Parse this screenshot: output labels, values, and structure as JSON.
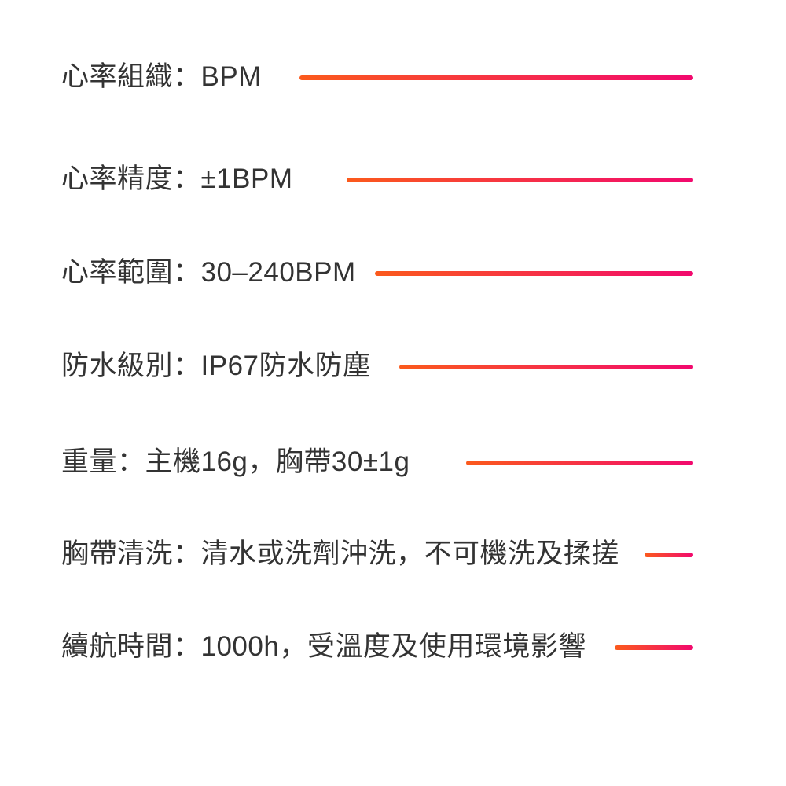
{
  "page": {
    "type": "product-spec-sheet",
    "background": "#ffffff"
  },
  "colors": {
    "text": "#333333",
    "line_gradient_start": "#fb5a1c",
    "line_gradient_end": "#f2096e"
  },
  "specs": [
    {
      "label": "心率組織：BPM"
    },
    {
      "label": "心率精度：±1BPM"
    },
    {
      "label": "心率範圍：30–240BPM"
    },
    {
      "label": "防水級別：IP67防水防塵"
    },
    {
      "label": "重量：主機16g，胸帶30±1g"
    },
    {
      "label": "胸帶清洗：清水或洗劑沖洗，不可機洗及揉搓"
    },
    {
      "label": "續航時間：1000h，受溫度及使用環境影響"
    }
  ]
}
